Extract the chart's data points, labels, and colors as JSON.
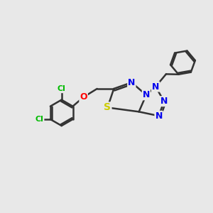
{
  "bg_color": "#e8e8e8",
  "bond_color": "#333333",
  "bond_width": 1.8,
  "atom_colors": {
    "N": "#0000ee",
    "S": "#cccc00",
    "O": "#ff0000",
    "Cl": "#00bb00",
    "C": "#333333"
  },
  "font_size": 9,
  "fig_size": [
    3.0,
    3.0
  ],
  "dpi": 100
}
